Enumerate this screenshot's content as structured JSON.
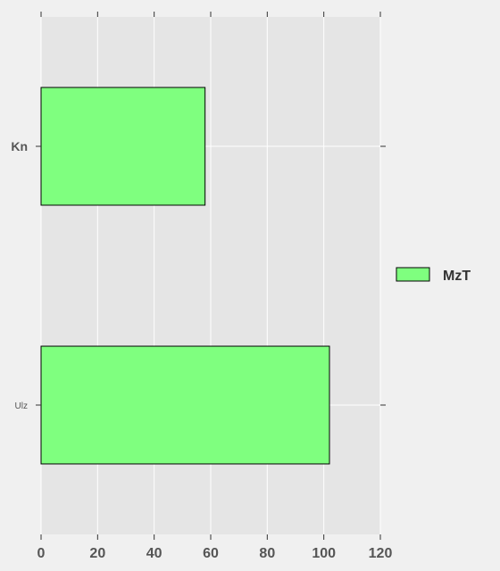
{
  "chart_data": {
    "type": "bar",
    "orientation": "horizontal",
    "categories": [
      "Ulz",
      "Kn"
    ],
    "series": [
      {
        "name": "MzT",
        "values": [
          102,
          58
        ],
        "color": "#7fff7f"
      }
    ],
    "xlim": [
      0,
      120
    ],
    "xticks": [
      "0",
      "20",
      "40",
      "60",
      "80",
      "100",
      "120"
    ],
    "grid": true,
    "legend": "right",
    "background": "#e5e5e5",
    "gridline_color": "#ffffff",
    "edge_color": "#000000"
  }
}
